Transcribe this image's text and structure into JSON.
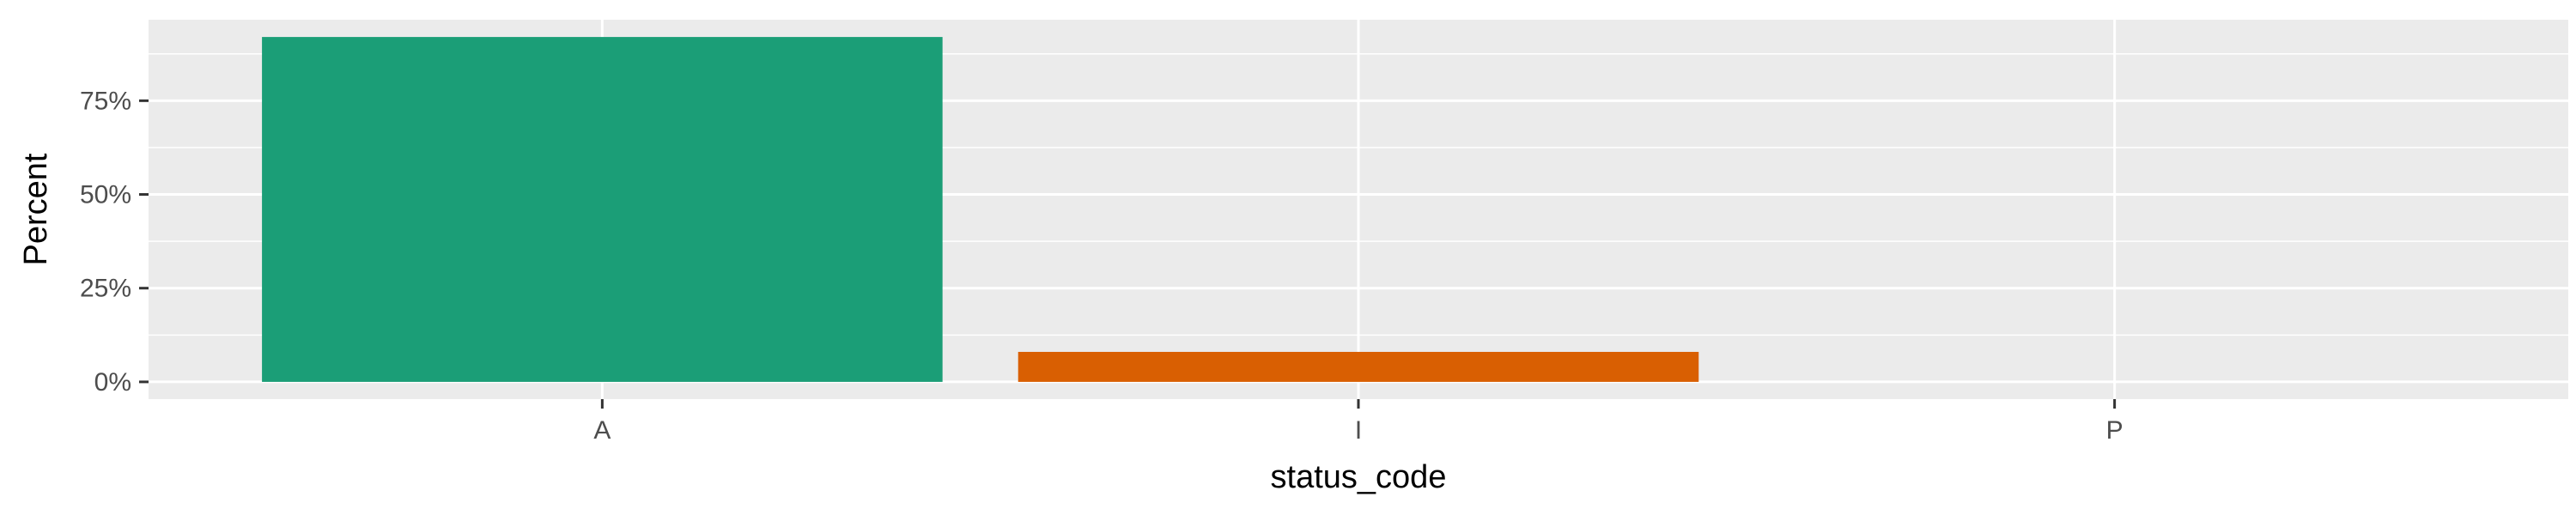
{
  "chart_data": {
    "type": "bar",
    "categories": [
      "A",
      "I",
      "P"
    ],
    "values": [
      92,
      8,
      0
    ],
    "unit": "%",
    "xlabel": "status_code",
    "ylabel": "Percent",
    "ylim": [
      -4.6,
      96.6
    ],
    "yticks": [
      0,
      25,
      50,
      75
    ],
    "ytick_labels": [
      "0%",
      "25%",
      "50%",
      "75%"
    ],
    "grid": true,
    "legend": "none",
    "colors": {
      "panel_background": "#EBEBEB",
      "grid_major": "#FFFFFF",
      "bars": [
        "#1B9E77",
        "#D95F02",
        "#7570B3"
      ]
    }
  }
}
